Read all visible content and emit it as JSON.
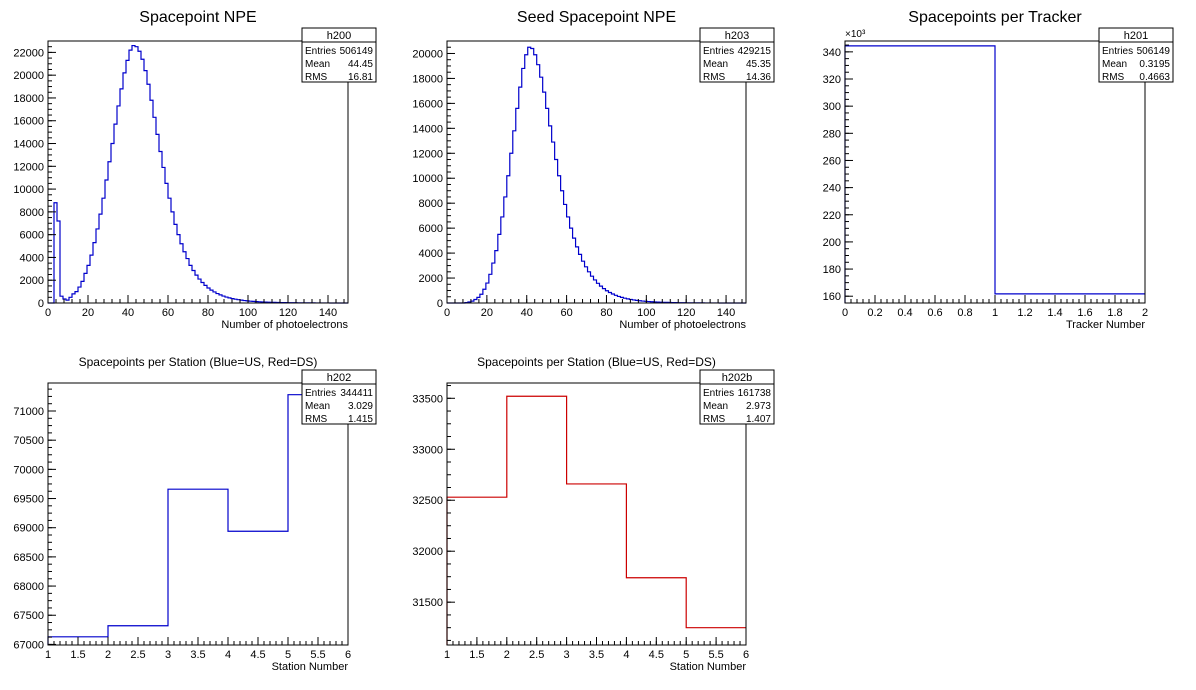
{
  "chart_data": [
    {
      "type": "bar",
      "title": "Spacepoint NPE",
      "xlabel": "Number of photoelectrons",
      "ylabel": "",
      "xlim": [
        0,
        150
      ],
      "ylim": [
        0,
        23000
      ],
      "xticks": [
        0,
        20,
        40,
        60,
        80,
        100,
        120,
        140
      ],
      "yticks": [
        0,
        2000,
        4000,
        6000,
        8000,
        10000,
        12000,
        14000,
        16000,
        18000,
        20000,
        22000
      ],
      "y_multiplier": "",
      "color": "#0000cc",
      "bin_edges_start": 0,
      "bin_width": 1.5,
      "values": [
        0,
        0,
        8800,
        7200,
        600,
        350,
        250,
        500,
        800,
        1000,
        1400,
        1900,
        2600,
        3300,
        4200,
        5300,
        6500,
        7800,
        9200,
        10800,
        12400,
        14000,
        15700,
        17300,
        18800,
        20200,
        21300,
        22200,
        22600,
        22500,
        22100,
        21400,
        20400,
        19200,
        17800,
        16300,
        14800,
        13300,
        11900,
        10500,
        9200,
        8000,
        6900,
        6000,
        5200,
        4500,
        3900,
        3300,
        2850,
        2450,
        2100,
        1800,
        1550,
        1320,
        1130,
        970,
        830,
        710,
        610,
        520,
        450,
        390,
        335,
        290,
        250,
        215,
        185,
        160,
        140,
        120,
        105,
        92,
        80,
        70,
        61,
        53,
        46,
        40,
        35,
        30,
        26,
        23,
        20,
        17,
        15,
        13,
        11,
        9,
        8,
        7,
        6,
        5,
        4,
        4,
        3,
        3,
        2,
        2,
        2,
        1
      ],
      "stats": {
        "name": "h200",
        "entries_label": "Entries",
        "entries": "506149",
        "mean_label": "Mean",
        "mean": "44.45",
        "rms_label": "RMS",
        "rms": "16.81"
      }
    },
    {
      "type": "bar",
      "title": "Seed Spacepoint NPE",
      "xlabel": "Number of photoelectrons",
      "ylabel": "",
      "xlim": [
        0,
        150
      ],
      "ylim": [
        0,
        21000
      ],
      "xticks": [
        0,
        20,
        40,
        60,
        80,
        100,
        120,
        140
      ],
      "yticks": [
        0,
        2000,
        4000,
        6000,
        8000,
        10000,
        12000,
        14000,
        16000,
        18000,
        20000
      ],
      "y_multiplier": "",
      "color": "#0000cc",
      "bin_edges_start": 0,
      "bin_width": 1.5,
      "values": [
        0,
        0,
        0,
        0,
        0,
        0,
        30,
        80,
        150,
        280,
        450,
        700,
        1100,
        1600,
        2300,
        3200,
        4200,
        5500,
        6900,
        8500,
        10200,
        12000,
        13800,
        15600,
        17300,
        18800,
        19900,
        20500,
        20400,
        19900,
        19100,
        18100,
        16900,
        15600,
        14200,
        12900,
        11500,
        10200,
        9000,
        7900,
        6900,
        6000,
        5200,
        4500,
        3900,
        3350,
        2900,
        2500,
        2150,
        1850,
        1580,
        1350,
        1150,
        980,
        840,
        720,
        615,
        525,
        450,
        385,
        330,
        285,
        245,
        210,
        180,
        155,
        135,
        115,
        100,
        87,
        75,
        65,
        56,
        48,
        42,
        36,
        31,
        27,
        23,
        20,
        17,
        15,
        13,
        11,
        9,
        8,
        7,
        6,
        5,
        4,
        4,
        3,
        3,
        2,
        2,
        2,
        1,
        1,
        1,
        1
      ],
      "stats": {
        "name": "h203",
        "entries_label": "Entries",
        "entries": "429215",
        "mean_label": "Mean",
        "mean": "45.35",
        "rms_label": "RMS",
        "rms": "14.36"
      }
    },
    {
      "type": "bar",
      "title": "Spacepoints per Tracker",
      "xlabel": "Tracker Number",
      "ylabel": "",
      "xlim": [
        0,
        2
      ],
      "ylim": [
        155,
        348
      ],
      "xticks": [
        0,
        0.2,
        0.4,
        0.6,
        0.8,
        1,
        1.2,
        1.4,
        1.6,
        1.8,
        2
      ],
      "yticks": [
        160,
        180,
        200,
        220,
        240,
        260,
        280,
        300,
        320,
        340
      ],
      "y_multiplier": "×10³",
      "color": "#0000cc",
      "bin_edges_start": 0,
      "bin_width": 1,
      "values": [
        344.4,
        161.7
      ],
      "stats": {
        "name": "h201",
        "entries_label": "Entries",
        "entries": "506149",
        "mean_label": "Mean",
        "mean": "0.3195",
        "rms_label": "RMS",
        "rms": "0.4663"
      }
    },
    {
      "type": "bar",
      "title": "Spacepoints per Station (Blue=US, Red=DS)",
      "xlabel": "Station Number",
      "ylabel": "",
      "xlim": [
        1,
        6
      ],
      "ylim": [
        66990,
        71480
      ],
      "xticks": [
        1,
        1.5,
        2,
        2.5,
        3,
        3.5,
        4,
        4.5,
        5,
        5.5,
        6
      ],
      "yticks": [
        67000,
        67500,
        68000,
        68500,
        69000,
        69500,
        70000,
        70500,
        71000
      ],
      "y_multiplier": "",
      "color": "#0000cc",
      "bin_edges_start": 1,
      "bin_width": 1,
      "values": [
        67130,
        67320,
        69660,
        68940,
        71280
      ],
      "stats": {
        "name": "h202",
        "entries_label": "Entries",
        "entries": "344411",
        "mean_label": "Mean",
        "mean": "3.029",
        "rms_label": "RMS",
        "rms": "1.415"
      }
    },
    {
      "type": "bar",
      "title": "Spacepoints per Station (Blue=US, Red=DS)",
      "xlabel": "Station Number",
      "ylabel": "",
      "xlim": [
        1,
        6
      ],
      "ylim": [
        31080,
        33650
      ],
      "xticks": [
        1,
        1.5,
        2,
        2.5,
        3,
        3.5,
        4,
        4.5,
        5,
        5.5,
        6
      ],
      "yticks": [
        31500,
        32000,
        32500,
        33000,
        33500
      ],
      "y_multiplier": "",
      "color": "#cc0000",
      "bin_edges_start": 1,
      "bin_width": 1,
      "values": [
        32530,
        33520,
        32660,
        31740,
        31250
      ],
      "stats": {
        "name": "h202b",
        "entries_label": "Entries",
        "entries": "161738",
        "mean_label": "Mean",
        "mean": "2.973",
        "rms_label": "RMS",
        "rms": "1.407"
      }
    }
  ]
}
